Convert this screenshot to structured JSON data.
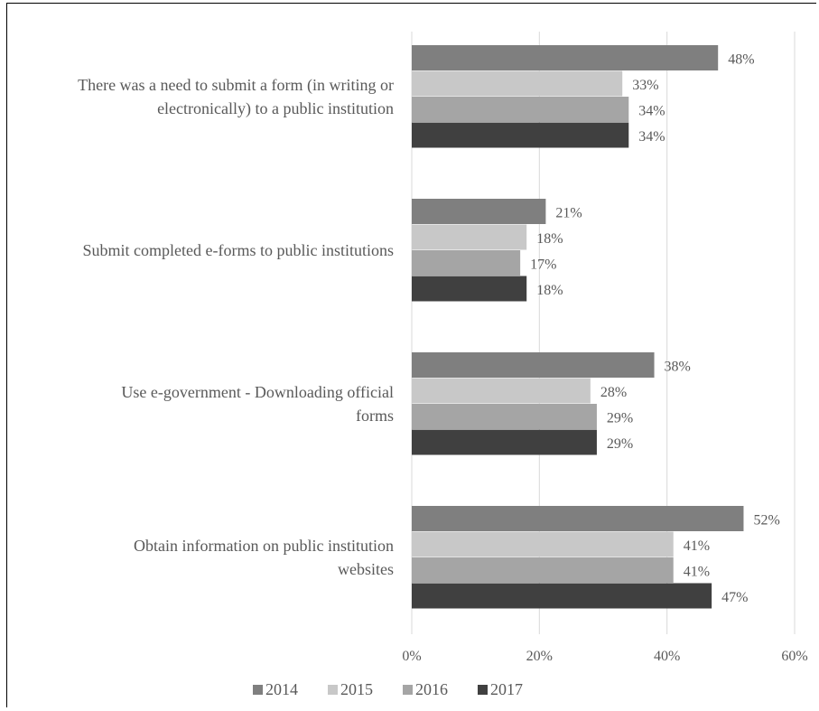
{
  "chart_data": {
    "type": "bar",
    "orientation": "horizontal",
    "categories": [
      [
        "There was a need to submit a form (in writing or",
        "electronically) to a public institution"
      ],
      [
        "Submit completed e-forms to public institutions"
      ],
      [
        "Use e-government  - Downloading official",
        "forms"
      ],
      [
        "Obtain information on public institution",
        "websites"
      ]
    ],
    "series": [
      {
        "name": "2014",
        "color": "#7f7f7f",
        "values": [
          48,
          21,
          38,
          52
        ],
        "labels": [
          "48%",
          "21%",
          "38%",
          "52%"
        ]
      },
      {
        "name": "2015",
        "color": "#c8c8c8",
        "values": [
          33,
          18,
          28,
          41
        ],
        "labels": [
          "33%",
          "18%",
          "28%",
          "41%"
        ]
      },
      {
        "name": "2016",
        "color": "#a5a5a5",
        "values": [
          34,
          17,
          29,
          41
        ],
        "labels": [
          "34%",
          "17%",
          "29%",
          "41%"
        ]
      },
      {
        "name": "2017",
        "color": "#404040",
        "values": [
          34,
          18,
          29,
          47
        ],
        "labels": [
          "34%",
          "18%",
          "29%",
          "47%"
        ]
      }
    ],
    "xlim": [
      0,
      60
    ],
    "x_ticks": [
      0,
      20,
      40,
      60
    ],
    "x_tick_labels": [
      "0%",
      "20%",
      "40%",
      "60%"
    ],
    "grid": true,
    "legend_position": "bottom",
    "title": "",
    "xlabel": "",
    "ylabel": ""
  }
}
